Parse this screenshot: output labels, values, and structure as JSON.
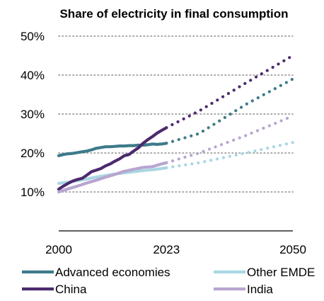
{
  "chart_data": {
    "type": "line",
    "title": "Share of electricity in final consumption",
    "xlabel": "",
    "ylabel": "",
    "x_ticks": [
      "2000",
      "2023",
      "2050"
    ],
    "y_ticks": [
      "10%",
      "20%",
      "30%",
      "40%",
      "50%"
    ],
    "ylim": [
      0,
      50
    ],
    "xlim": [
      2000,
      2050
    ],
    "grid": "horizontal dotted",
    "legend_position": "bottom",
    "historical_end_year": 2023,
    "series": [
      {
        "name": "Advanced economies",
        "color": "#3d7a8a",
        "historical": [
          [
            2000,
            19.3
          ],
          [
            2001,
            19.6
          ],
          [
            2002,
            19.8
          ],
          [
            2003,
            19.9
          ],
          [
            2004,
            20.1
          ],
          [
            2005,
            20.3
          ],
          [
            2006,
            20.5
          ],
          [
            2007,
            20.8
          ],
          [
            2008,
            21.2
          ],
          [
            2009,
            21.4
          ],
          [
            2010,
            21.6
          ],
          [
            2011,
            21.6
          ],
          [
            2012,
            21.7
          ],
          [
            2013,
            21.8
          ],
          [
            2014,
            21.8
          ],
          [
            2015,
            21.9
          ],
          [
            2016,
            21.9
          ],
          [
            2017,
            22.0
          ],
          [
            2018,
            22.0
          ],
          [
            2019,
            22.1
          ],
          [
            2020,
            22.3
          ],
          [
            2021,
            22.2
          ],
          [
            2022,
            22.3
          ],
          [
            2023,
            22.5
          ]
        ],
        "projection": [
          [
            2023,
            22.5
          ],
          [
            2030,
            25.0
          ],
          [
            2040,
            32.5
          ],
          [
            2050,
            39.0
          ]
        ]
      },
      {
        "name": "Other EMDE",
        "color": "#a9d7e3",
        "historical": [
          [
            2000,
            12.2
          ],
          [
            2002,
            12.5
          ],
          [
            2004,
            12.9
          ],
          [
            2006,
            13.3
          ],
          [
            2008,
            13.8
          ],
          [
            2010,
            14.2
          ],
          [
            2012,
            14.6
          ],
          [
            2014,
            14.9
          ],
          [
            2016,
            15.2
          ],
          [
            2018,
            15.5
          ],
          [
            2020,
            15.7
          ],
          [
            2022,
            16.0
          ],
          [
            2023,
            16.2
          ]
        ],
        "projection": [
          [
            2023,
            16.2
          ],
          [
            2030,
            17.5
          ],
          [
            2040,
            20.0
          ],
          [
            2050,
            22.7
          ]
        ]
      },
      {
        "name": "China",
        "color": "#4c2a6e",
        "historical": [
          [
            2000,
            10.7
          ],
          [
            2001,
            11.5
          ],
          [
            2002,
            12.2
          ],
          [
            2003,
            12.8
          ],
          [
            2004,
            13.2
          ],
          [
            2005,
            13.5
          ],
          [
            2006,
            14.3
          ],
          [
            2007,
            15.2
          ],
          [
            2008,
            15.6
          ],
          [
            2009,
            16.0
          ],
          [
            2010,
            16.7
          ],
          [
            2011,
            17.2
          ],
          [
            2012,
            17.9
          ],
          [
            2013,
            18.5
          ],
          [
            2014,
            19.3
          ],
          [
            2015,
            19.6
          ],
          [
            2016,
            20.5
          ],
          [
            2017,
            21.3
          ],
          [
            2018,
            22.5
          ],
          [
            2019,
            23.4
          ],
          [
            2020,
            24.2
          ],
          [
            2021,
            25.1
          ],
          [
            2022,
            25.8
          ],
          [
            2023,
            26.5
          ]
        ],
        "projection": [
          [
            2023,
            26.5
          ],
          [
            2030,
            30.8
          ],
          [
            2040,
            38.0
          ],
          [
            2050,
            45.0
          ]
        ]
      },
      {
        "name": "India",
        "color": "#b8a5d0",
        "historical": [
          [
            2000,
            10.0
          ],
          [
            2002,
            10.8
          ],
          [
            2004,
            11.5
          ],
          [
            2006,
            12.3
          ],
          [
            2008,
            13.0
          ],
          [
            2010,
            13.8
          ],
          [
            2012,
            14.5
          ],
          [
            2014,
            15.3
          ],
          [
            2016,
            15.8
          ],
          [
            2018,
            16.3
          ],
          [
            2020,
            16.5
          ],
          [
            2022,
            17.2
          ],
          [
            2023,
            17.5
          ]
        ],
        "projection": [
          [
            2023,
            17.5
          ],
          [
            2030,
            20.0
          ],
          [
            2040,
            24.5
          ],
          [
            2050,
            29.5
          ]
        ]
      }
    ],
    "legend": [
      {
        "label": "Advanced economies",
        "color": "#3d7a8a"
      },
      {
        "label": "Other EMDE",
        "color": "#a9d7e3"
      },
      {
        "label": "China",
        "color": "#4c2a6e"
      },
      {
        "label": "India",
        "color": "#b8a5d0"
      }
    ]
  }
}
